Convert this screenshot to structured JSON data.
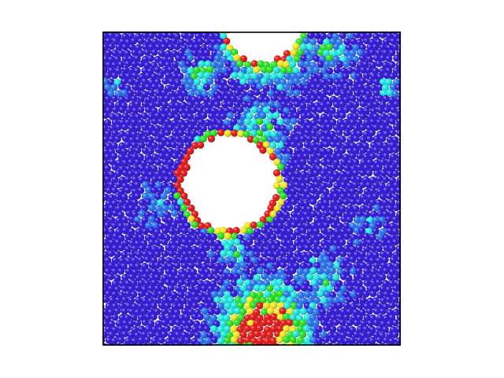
{
  "scene": {
    "background": "#ffffff",
    "box_outline_color": "#000000",
    "particle_colors": {
      "low": "#2a10d8",
      "low_mid": "#1f6ff0",
      "mid": "#16e8e0",
      "mid_high": "#22e01c",
      "high_mid": "#f0e61a",
      "high": "#e41010"
    },
    "voids": [
      {
        "shape": "ellipse",
        "location": "left-center"
      },
      {
        "shape": "half-ellipse",
        "location": "top-center"
      }
    ]
  }
}
